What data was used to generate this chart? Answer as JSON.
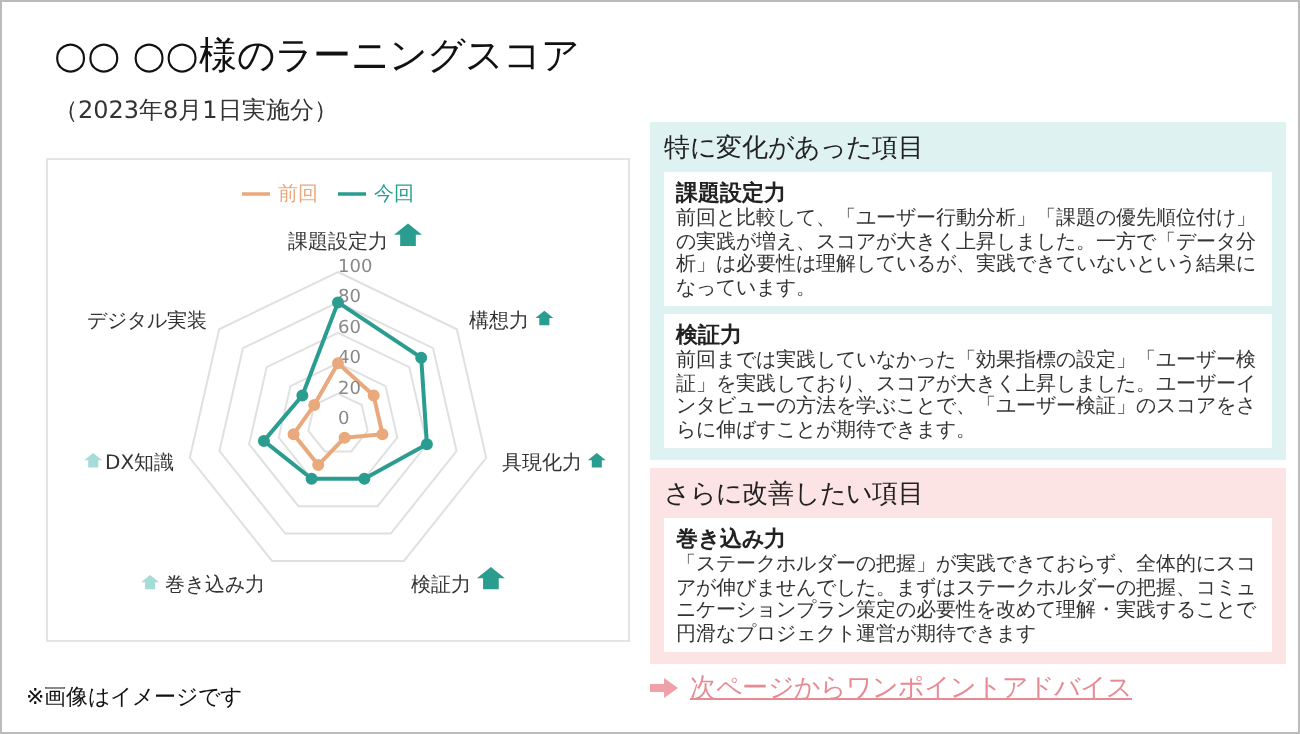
{
  "chart_data": [
    {
      "type": "radar",
      "title": "○○ ○○様のラーニングスコア",
      "subtitle": "（2023年8月1日実施分）",
      "categories": [
        "課題設定力",
        "構想力",
        "具現化力",
        "検証力",
        "巻き込み力",
        "DX知識",
        "デジタル実装"
      ],
      "series": [
        {
          "name": "前回",
          "color": "#e9a97c",
          "values": [
            40,
            30,
            30,
            10,
            30,
            30,
            20
          ]
        },
        {
          "name": "今回",
          "color": "#2a9d90",
          "values": [
            80,
            70,
            60,
            40,
            40,
            50,
            30
          ]
        }
      ],
      "ylim": [
        0,
        100
      ],
      "yticks": [
        0,
        20,
        40,
        60,
        80,
        100
      ],
      "grid": true,
      "legend": "top",
      "marker": "circle",
      "annotations": [
        "※画像はイメージです"
      ]
    },
    {
      "type": "other",
      "title": "特に変化があった項目",
      "annotations": [
        "課題設定力",
        "前回と比較して、「ユーザー行動分析」「課題の優先順位付け」の実践が増え、スコアが大きく上昇しました。一方で「データ分析」は必要性は理解しているが、実践できていないという結果になっています。",
        "検証力",
        "前回までは実践していなかった「効果指標の設定」「ユーザー検証」を実践しており、スコアが大きく上昇しました。ユーザーインタビューの方法を学ぶことで、「ユーザー検証」のスコアをさらに伸ばすことが期待できます。"
      ]
    },
    {
      "type": "other",
      "title": "さらに改善したい項目",
      "annotations": [
        "巻き込み力",
        "「ステークホルダーの把握」が実践できておらず、全体的にスコアが伸びませんでした。まずはステークホルダーの把握、コミュニケーションプラン策定の必要性を改めて理解・実践することで円滑なプロジェクト運営が期待できます",
        "次ページからワンポイントアドバイス"
      ]
    }
  ]
}
